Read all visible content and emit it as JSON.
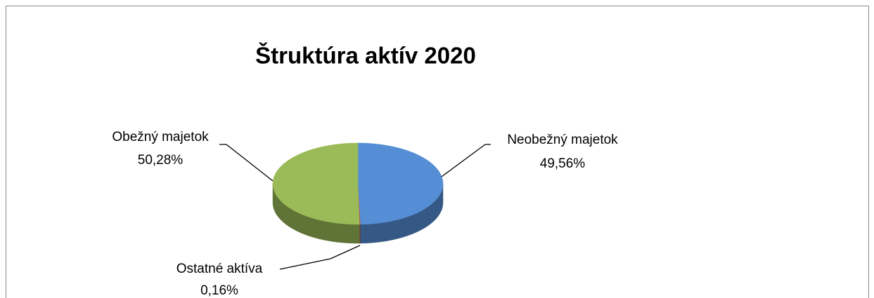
{
  "chart_data": {
    "type": "pie",
    "title": "Štruktúra aktív 2020",
    "categories": [
      "Neobežný majetok",
      "Ostatné aktíva",
      "Obežný majetok"
    ],
    "values": [
      49.56,
      0.16,
      50.28
    ],
    "value_labels": [
      "49,56%",
      "0,16%",
      "50,28%"
    ],
    "colors": [
      "#558ed5",
      "#c0504d",
      "#9bbb59"
    ]
  }
}
